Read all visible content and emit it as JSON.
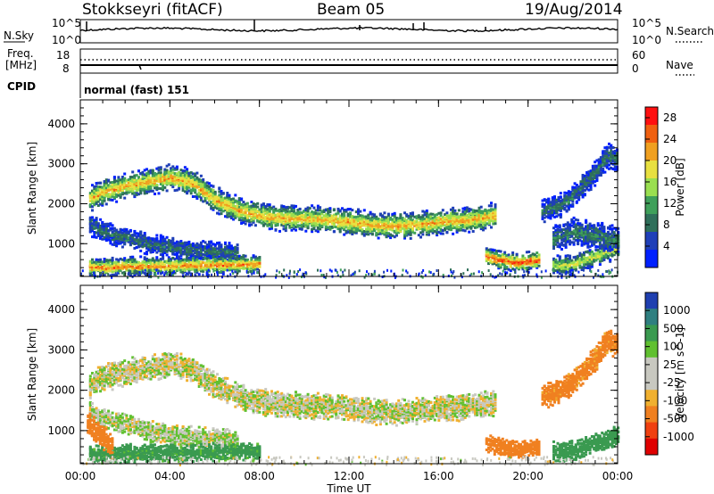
{
  "header": {
    "station": "Stokkseyri (fitACF)",
    "beam": "Beam 05",
    "date": "19/Aug/2014"
  },
  "status_panels": {
    "nsky_label": "N.Sky",
    "nsky_ticks": [
      "10^5",
      "10^0"
    ],
    "nsearch_label": "N.Search",
    "nsearch_ticks": [
      "10^5",
      "10^0"
    ],
    "freq_label_1": "Freq.",
    "freq_label_2": "[MHz]",
    "freq_ticks": [
      "18",
      "8"
    ],
    "nave_label": "Nave",
    "nave_ticks": [
      "60",
      "0"
    ],
    "cpid_label": "CPID",
    "cpid_value": "normal (fast) 151"
  },
  "colors": {
    "power_scale": [
      "#0020ff",
      "#1f3fb8",
      "#2f6f5a",
      "#3fa05a",
      "#9adf50",
      "#e8e040",
      "#f0a020",
      "#f06010",
      "#ff1010"
    ],
    "velocity_scale": [
      "#e00000",
      "#f04010",
      "#f08020",
      "#f0b030",
      "#c8c8c0",
      "#c8c8c0",
      "#60c030",
      "#3a9a50",
      "#2f7f80",
      "#1f3fb0"
    ]
  },
  "chart_data": [
    {
      "type": "heatmap",
      "title": "",
      "xlabel": "Time UT",
      "ylabel": "Slant Range [km]",
      "x_ticks": [
        "00:00",
        "04:00",
        "08:00",
        "12:00",
        "16:00",
        "20:00",
        "00:00"
      ],
      "y_ticks": [
        "1000",
        "2000",
        "3000",
        "4000"
      ],
      "xlim_hours": [
        0,
        24
      ],
      "ylim_km": [
        180,
        4600
      ],
      "colorbar": {
        "label": "Power [dB]",
        "ticks": [
          "4",
          "8",
          "12",
          "16",
          "20",
          "24",
          "28"
        ],
        "range": [
          0,
          30
        ]
      },
      "bands": [
        {
          "x": [
            0.3,
            1,
            2,
            3,
            4,
            4.5,
            5,
            6,
            7,
            8,
            9,
            10,
            11,
            12,
            13,
            14,
            15,
            16,
            17,
            18,
            18.5
          ],
          "y": [
            2100,
            2300,
            2450,
            2550,
            2650,
            2600,
            2500,
            2100,
            1850,
            1700,
            1640,
            1620,
            1600,
            1550,
            1470,
            1450,
            1480,
            1550,
            1580,
            1650,
            1700
          ],
          "w": 320,
          "peak": 22
        },
        {
          "x": [
            0.3,
            1,
            2,
            3,
            4,
            5,
            6,
            7
          ],
          "y": [
            1500,
            1300,
            1150,
            1000,
            900,
            830,
            800,
            760
          ],
          "w": 260,
          "peak": 9
        },
        {
          "x": [
            0.3,
            1,
            2,
            3,
            4,
            5,
            6,
            7,
            8
          ],
          "y": [
            430,
            400,
            430,
            440,
            450,
            460,
            470,
            480,
            500
          ],
          "w": 220,
          "peak": 24
        },
        {
          "x": [
            18,
            18.5,
            19,
            19.5,
            20,
            20.5
          ],
          "y": [
            700,
            620,
            560,
            520,
            560,
            600
          ],
          "w": 220,
          "peak": 27
        },
        {
          "x": [
            20.5,
            21,
            21.5,
            22,
            22.5,
            23,
            23.5,
            24
          ],
          "y": [
            1800,
            1900,
            2000,
            2200,
            2500,
            2800,
            3200,
            3100
          ],
          "w": 300,
          "peak": 9
        },
        {
          "x": [
            21,
            21.5,
            22,
            22.5,
            23,
            23.5,
            24
          ],
          "y": [
            500,
            450,
            500,
            600,
            700,
            800,
            900
          ],
          "w": 250,
          "peak": 17
        },
        {
          "x": [
            21,
            22,
            23,
            24
          ],
          "y": [
            1100,
            1300,
            1200,
            1100
          ],
          "w": 350,
          "peak": 10
        }
      ]
    },
    {
      "type": "heatmap",
      "title": "",
      "xlabel": "Time UT",
      "ylabel": "Slant Range [km]",
      "x_ticks": [
        "00:00",
        "04:00",
        "08:00",
        "12:00",
        "16:00",
        "20:00",
        "00:00"
      ],
      "y_ticks": [
        "1000",
        "2000",
        "3000",
        "4000"
      ],
      "xlim_hours": [
        0,
        24
      ],
      "ylim_km": [
        180,
        4600
      ],
      "colorbar": {
        "label": "Velocity [m s^-1]",
        "ticks": [
          "1000",
          "500",
          "100",
          "25",
          "-25",
          "-100",
          "-500",
          "-1000"
        ]
      },
      "bands": [
        {
          "x": [
            0.3,
            1,
            2,
            3,
            4,
            4.5,
            5,
            6,
            7,
            8,
            9,
            10,
            11,
            12,
            13,
            14,
            15,
            16,
            17,
            18,
            18.5
          ],
          "y": [
            2100,
            2300,
            2450,
            2550,
            2650,
            2600,
            2500,
            2100,
            1850,
            1700,
            1640,
            1620,
            1600,
            1550,
            1470,
            1450,
            1480,
            1550,
            1580,
            1650,
            1700
          ],
          "w": 320,
          "vel": 0
        },
        {
          "x": [
            0.3,
            1,
            2,
            3,
            4,
            5,
            6,
            7
          ],
          "y": [
            1500,
            1300,
            1150,
            1000,
            900,
            830,
            800,
            760
          ],
          "w": 260,
          "vel": 20
        },
        {
          "x": [
            0.3,
            1,
            2,
            3,
            4,
            5,
            6,
            7,
            8
          ],
          "y": [
            430,
            400,
            430,
            440,
            450,
            460,
            470,
            480,
            500
          ],
          "w": 220,
          "vel": 150
        },
        {
          "x": [
            18,
            18.5,
            19,
            19.5,
            20,
            20.5
          ],
          "y": [
            700,
            620,
            560,
            520,
            560,
            600
          ],
          "w": 220,
          "vel": -400
        },
        {
          "x": [
            20.5,
            21,
            21.5,
            22,
            22.5,
            23,
            23.5,
            24
          ],
          "y": [
            1800,
            1900,
            2000,
            2200,
            2500,
            2800,
            3200,
            3100
          ],
          "w": 300,
          "vel": -150
        },
        {
          "x": [
            21,
            21.5,
            22,
            22.5,
            23,
            23.5,
            24
          ],
          "y": [
            500,
            450,
            500,
            600,
            700,
            800,
            900
          ],
          "w": 250,
          "vel": 300
        },
        {
          "x": [
            0.2,
            0.6,
            1,
            1.4
          ],
          "y": [
            1200,
            1000,
            800,
            600
          ],
          "w": 300,
          "vel": -300
        }
      ]
    }
  ]
}
